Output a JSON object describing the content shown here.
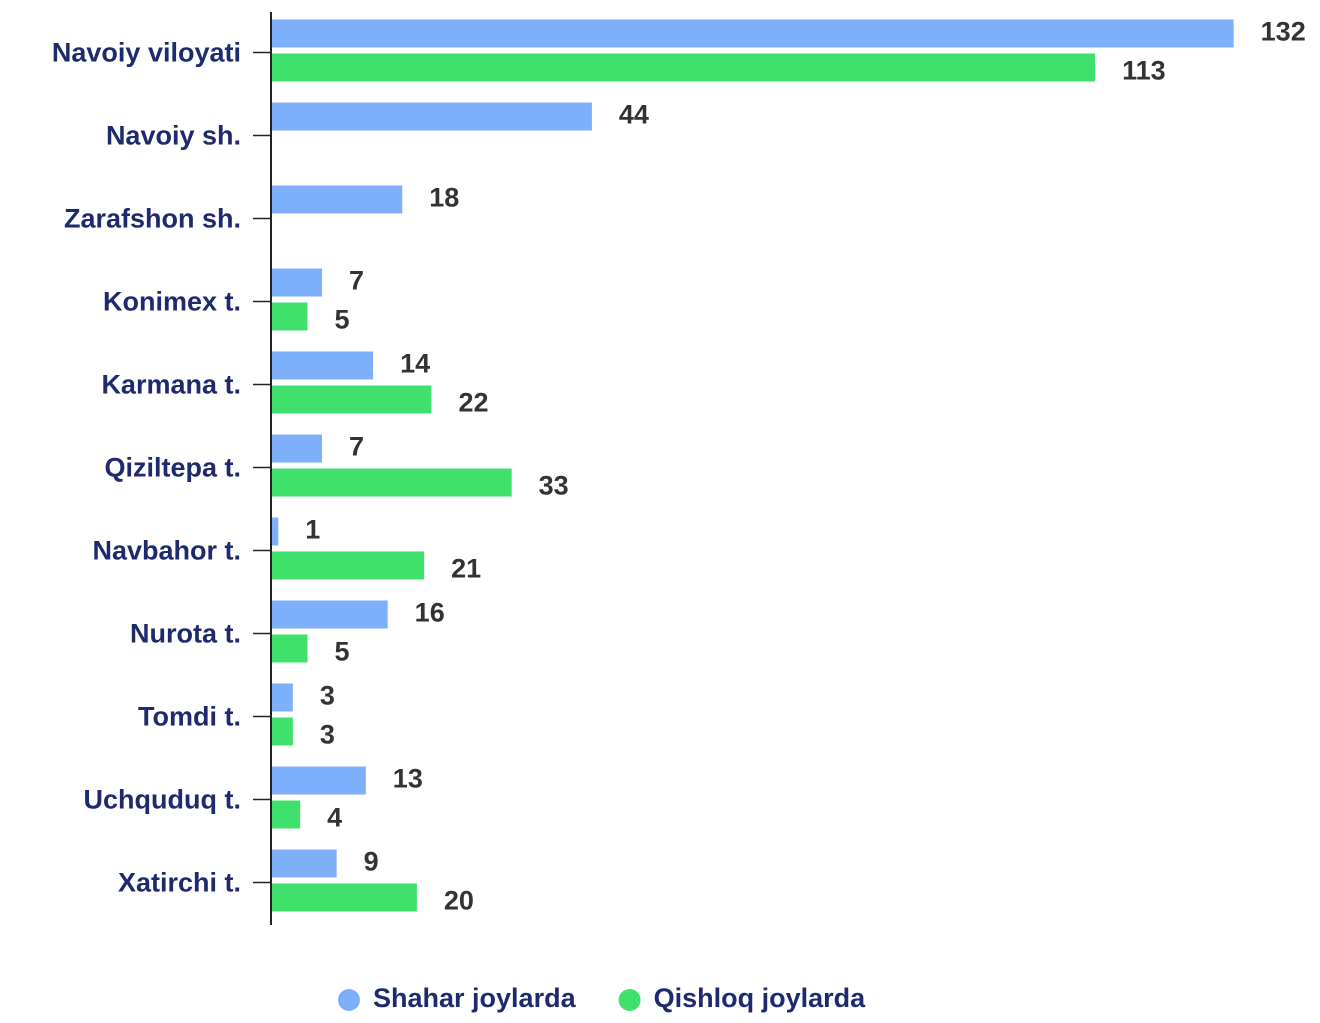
{
  "chart_data": {
    "type": "bar",
    "orientation": "horizontal",
    "categories": [
      "Navoiy viloyati",
      "Navoiy sh.",
      "Zarafshon sh.",
      "Konimex t.",
      "Karmana t.",
      "Qiziltepa t.",
      "Navbahor t.",
      "Nurota t.",
      "Tomdi t.",
      "Uchquduq t.",
      "Xatirchi t."
    ],
    "series": [
      {
        "name": "Shahar joylarda",
        "color": "#7eaffb",
        "values": [
          132,
          44,
          18,
          7,
          14,
          7,
          1,
          16,
          3,
          13,
          9
        ]
      },
      {
        "name": "Qishloq joylarda",
        "color": "#3fe06b",
        "values": [
          113,
          null,
          null,
          5,
          22,
          33,
          21,
          5,
          3,
          4,
          20
        ]
      }
    ],
    "xlim": [
      0,
      140
    ],
    "legend": "bottom"
  }
}
